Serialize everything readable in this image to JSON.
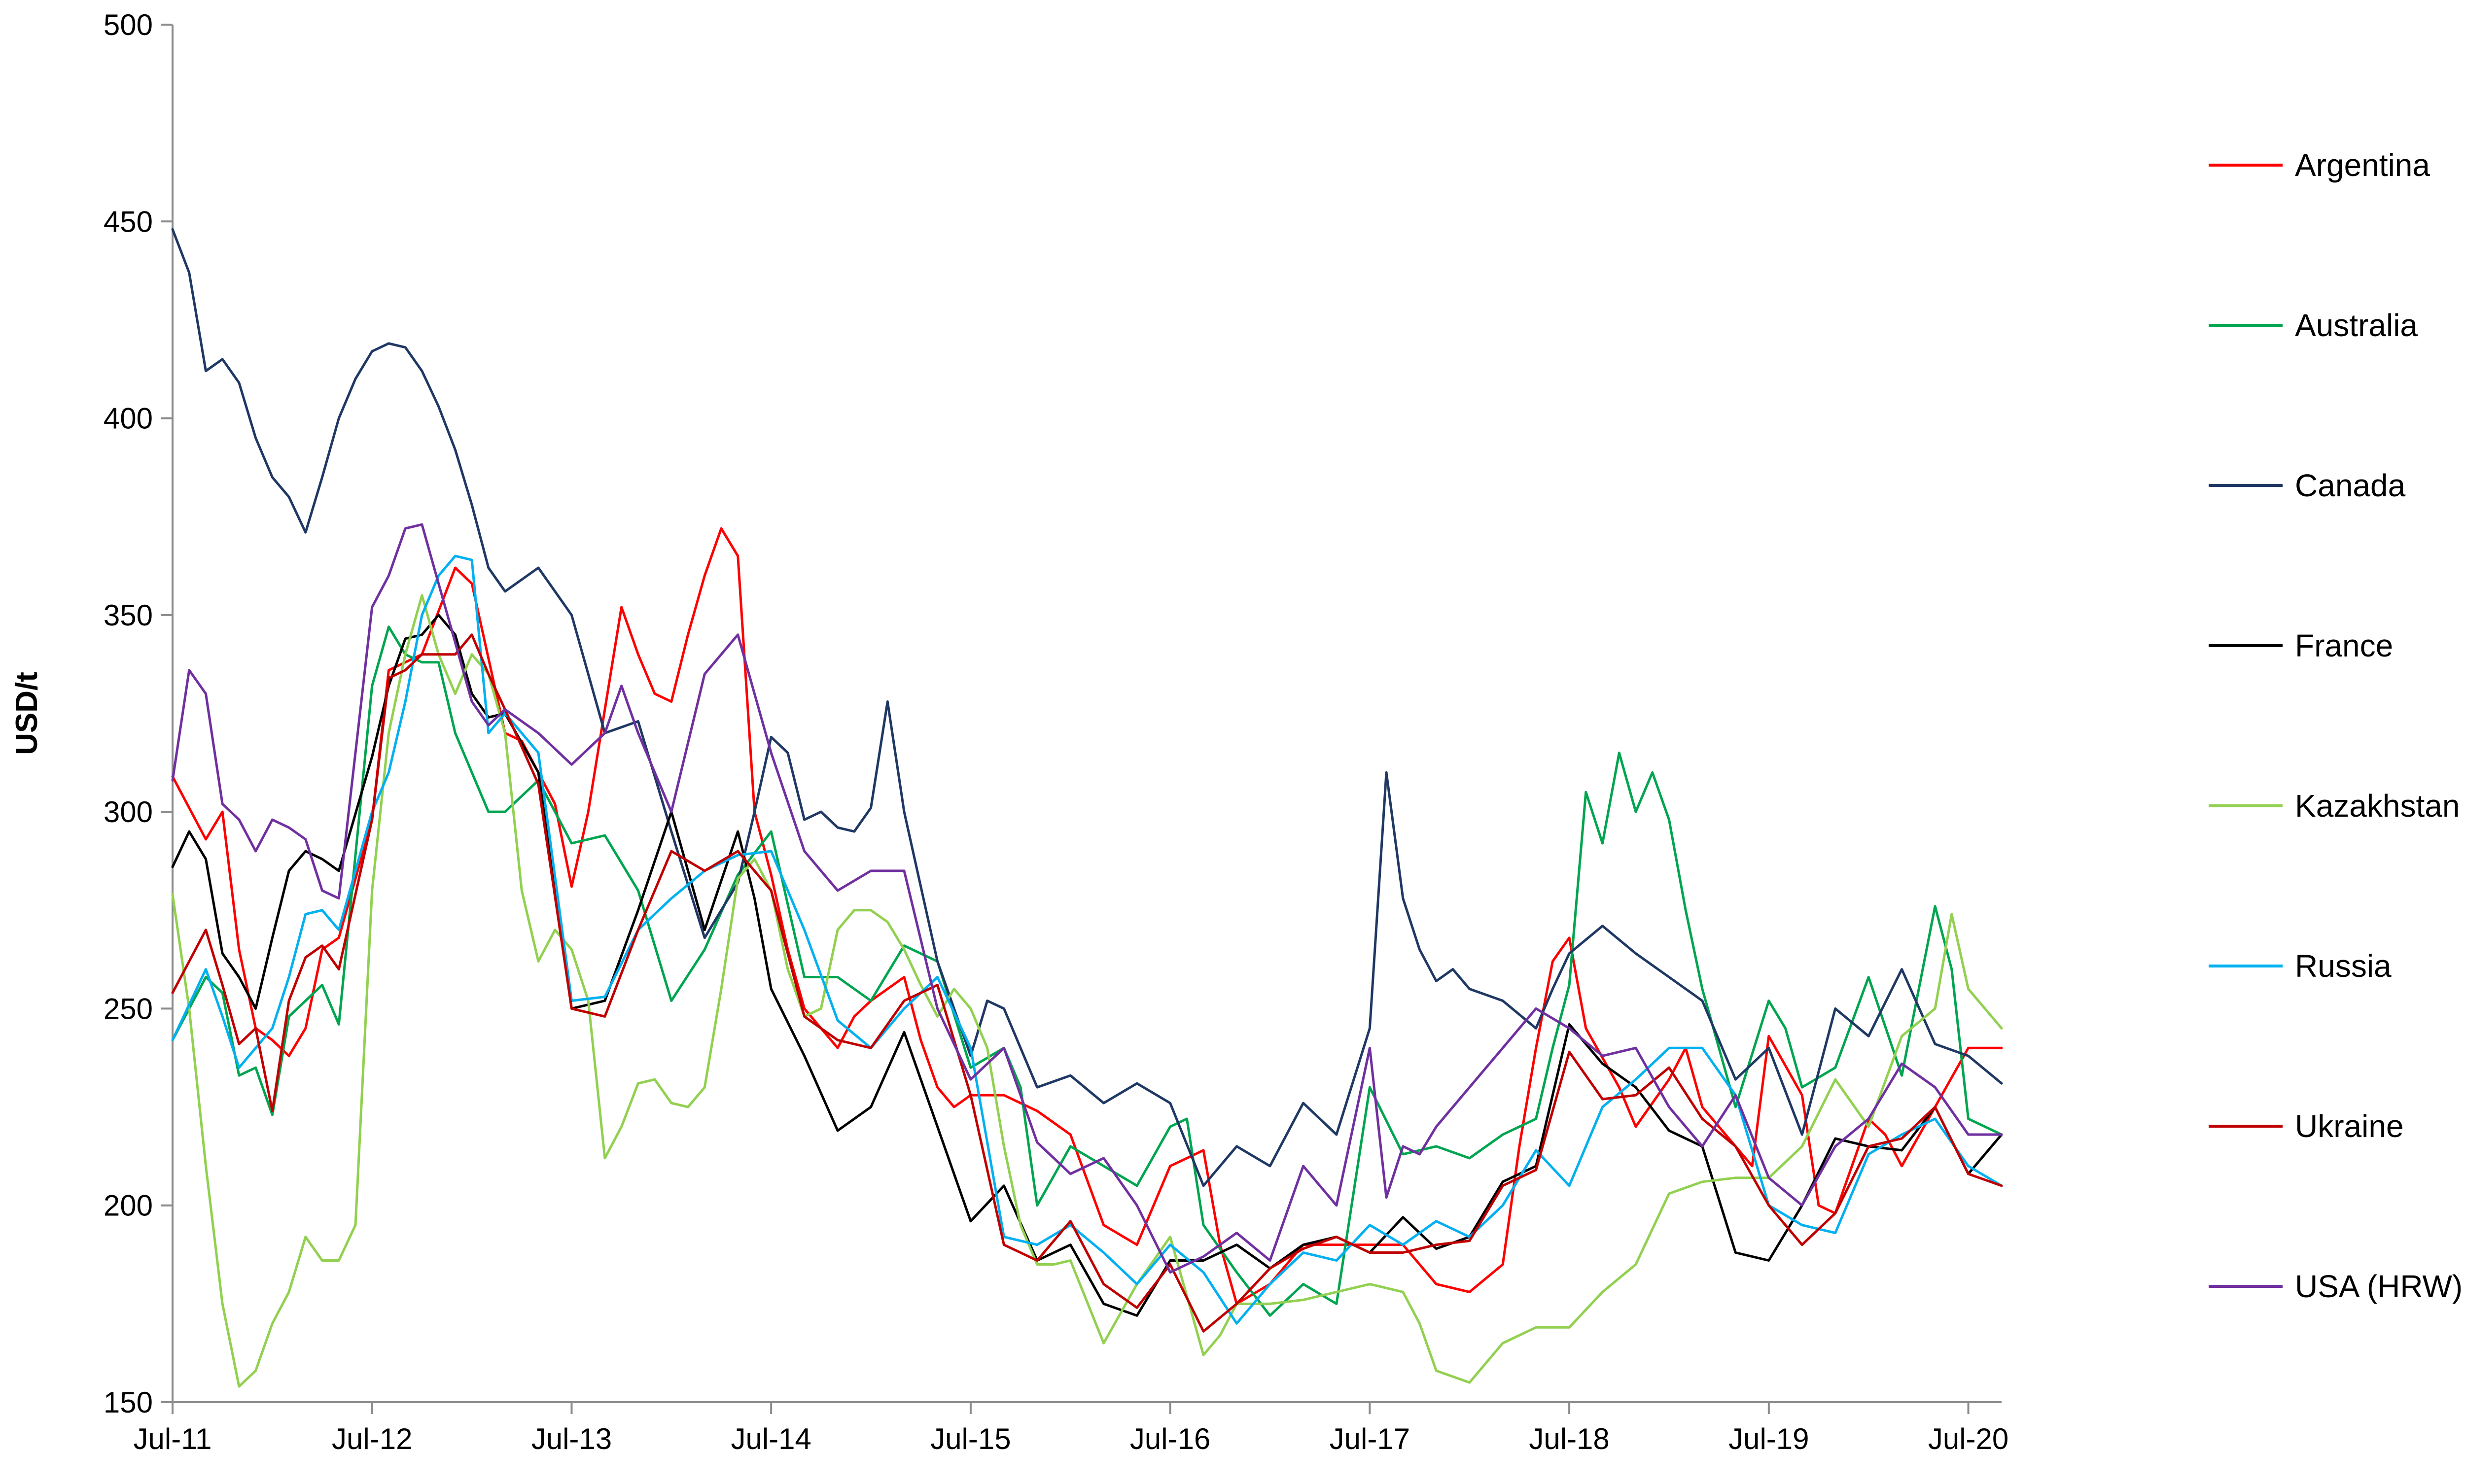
{
  "chart_data": {
    "type": "line",
    "title": "",
    "xlabel": "",
    "ylabel": "USD/t",
    "ylim": [
      150,
      500
    ],
    "y_ticks": [
      "150",
      "200",
      "250",
      "300",
      "350",
      "400",
      "450",
      "500"
    ],
    "x_tick_labels": [
      "Jul-11",
      "Jul-12",
      "Jul-13",
      "Jul-14",
      "Jul-15",
      "Jul-16",
      "Jul-17",
      "Jul-18",
      "Jul-19",
      "Jul-20"
    ],
    "x_tick_months": [
      0,
      12,
      24,
      36,
      48,
      60,
      72,
      84,
      96,
      108
    ],
    "x_range_months": [
      0,
      110
    ],
    "grid": false,
    "legend_position": "right",
    "series": [
      {
        "name": "Argentina",
        "color": "#ff0000",
        "x": [
          0,
          2,
          3,
          4,
          5,
          6,
          7,
          8,
          9,
          10,
          12,
          13,
          15,
          17,
          18,
          20,
          21,
          22,
          23,
          24,
          25,
          27,
          28,
          29,
          30,
          31,
          32,
          33,
          34,
          35,
          36,
          37,
          38,
          39,
          40,
          41,
          42,
          43,
          44,
          45,
          46,
          47,
          48,
          50,
          52,
          54,
          56,
          58,
          60,
          62,
          63,
          64,
          66,
          68,
          70,
          72,
          74,
          76,
          78,
          80,
          81,
          82,
          83,
          84,
          85,
          87,
          88,
          90,
          91,
          92,
          93,
          95,
          96,
          98,
          99,
          100,
          102,
          103,
          104,
          106,
          108,
          110
        ],
        "values": [
          309,
          293,
          300,
          265,
          245,
          242,
          238,
          245,
          265,
          268,
          298,
          336,
          340,
          362,
          358,
          320,
          318,
          310,
          302,
          281,
          300,
          352,
          340,
          330,
          328,
          345,
          360,
          372,
          365,
          300,
          284,
          265,
          250,
          245,
          240,
          248,
          252,
          255,
          258,
          242,
          230,
          225,
          228,
          228,
          224,
          218,
          195,
          190,
          210,
          214,
          190,
          175,
          180,
          190,
          190,
          190,
          190,
          180,
          178,
          185,
          215,
          240,
          262,
          268,
          245,
          230,
          220,
          232,
          240,
          225,
          220,
          210,
          243,
          228,
          200,
          198,
          222,
          218,
          210,
          225,
          240,
          240
        ]
      },
      {
        "name": "Australia",
        "color": "#00a550",
        "x": [
          0,
          2,
          3,
          4,
          5,
          6,
          7,
          8,
          9,
          10,
          12,
          13,
          14,
          15,
          16,
          17,
          18,
          19,
          20,
          22,
          24,
          26,
          28,
          30,
          32,
          34,
          36,
          38,
          40,
          42,
          44,
          46,
          48,
          50,
          51,
          52,
          54,
          56,
          58,
          60,
          61,
          62,
          64,
          66,
          68,
          70,
          72,
          74,
          76,
          78,
          80,
          82,
          83,
          84,
          85,
          86,
          87,
          88,
          89,
          90,
          91,
          92,
          94,
          96,
          97,
          98,
          100,
          102,
          104,
          106,
          107,
          108,
          110
        ],
        "values": [
          242,
          258,
          254,
          233,
          235,
          223,
          248,
          252,
          256,
          246,
          332,
          347,
          340,
          338,
          338,
          320,
          310,
          300,
          300,
          308,
          292,
          294,
          280,
          252,
          265,
          284,
          295,
          258,
          258,
          252,
          266,
          262,
          235,
          240,
          230,
          200,
          215,
          210,
          205,
          220,
          222,
          195,
          183,
          172,
          180,
          175,
          230,
          213,
          215,
          212,
          218,
          222,
          240,
          256,
          305,
          292,
          315,
          300,
          310,
          298,
          275,
          255,
          225,
          252,
          245,
          230,
          235,
          258,
          233,
          276,
          260,
          222,
          218
        ]
      },
      {
        "name": "Canada",
        "color": "#1f3864",
        "x": [
          0,
          1,
          2,
          3,
          4,
          5,
          6,
          7,
          8,
          9,
          10,
          11,
          12,
          13,
          14,
          15,
          16,
          17,
          18,
          19,
          20,
          22,
          24,
          26,
          28,
          30,
          32,
          34,
          35,
          36,
          37,
          38,
          39,
          40,
          41,
          42,
          43,
          44,
          46,
          48,
          49,
          50,
          52,
          54,
          56,
          58,
          60,
          62,
          64,
          66,
          68,
          70,
          72,
          73,
          74,
          75,
          76,
          77,
          78,
          80,
          82,
          83,
          84,
          86,
          88,
          90,
          92,
          94,
          96,
          98,
          100,
          102,
          104,
          106,
          108,
          110
        ],
        "values": [
          448,
          437,
          412,
          415,
          409,
          395,
          385,
          380,
          371,
          385,
          400,
          410,
          417,
          419,
          418,
          412,
          403,
          392,
          378,
          362,
          356,
          362,
          350,
          320,
          323,
          295,
          268,
          282,
          300,
          319,
          315,
          298,
          300,
          296,
          295,
          301,
          328,
          300,
          262,
          238,
          252,
          250,
          230,
          233,
          226,
          231,
          226,
          205,
          215,
          210,
          226,
          218,
          245,
          310,
          278,
          265,
          257,
          260,
          255,
          252,
          245,
          255,
          264,
          271,
          264,
          258,
          252,
          232,
          240,
          218,
          250,
          243,
          260,
          241,
          238,
          231
        ]
      },
      {
        "name": "France",
        "color": "#000000",
        "x": [
          0,
          1,
          2,
          3,
          4,
          5,
          6,
          7,
          8,
          9,
          10,
          12,
          13,
          14,
          15,
          16,
          17,
          18,
          19,
          20,
          22,
          24,
          26,
          28,
          30,
          32,
          34,
          35,
          36,
          38,
          40,
          42,
          44,
          46,
          48,
          50,
          52,
          54,
          56,
          58,
          60,
          62,
          64,
          66,
          68,
          70,
          72,
          74,
          76,
          78,
          80,
          82,
          84,
          86,
          88,
          90,
          92,
          94,
          96,
          98,
          100,
          102,
          104,
          106,
          108,
          110
        ],
        "values": [
          286,
          295,
          288,
          264,
          258,
          250,
          268,
          285,
          290,
          288,
          285,
          314,
          332,
          344,
          345,
          350,
          345,
          330,
          324,
          325,
          310,
          250,
          252,
          275,
          300,
          270,
          295,
          278,
          255,
          238,
          219,
          225,
          244,
          220,
          196,
          205,
          186,
          190,
          175,
          172,
          186,
          186,
          190,
          184,
          190,
          192,
          188,
          197,
          189,
          192,
          206,
          210,
          246,
          236,
          230,
          219,
          215,
          188,
          186,
          200,
          217,
          215,
          214,
          225,
          208,
          218
        ]
      },
      {
        "name": "Kazakhstan",
        "color": "#92d050",
        "x": [
          0,
          1,
          2,
          3,
          4,
          5,
          6,
          7,
          8,
          9,
          10,
          11,
          12,
          13,
          14,
          15,
          16,
          17,
          18,
          19,
          20,
          21,
          22,
          23,
          24,
          25,
          26,
          27,
          28,
          29,
          30,
          31,
          32,
          33,
          34,
          35,
          36,
          37,
          38,
          39,
          40,
          41,
          42,
          43,
          44,
          45,
          46,
          47,
          48,
          49,
          50,
          51,
          52,
          53,
          54,
          56,
          58,
          60,
          62,
          63,
          64,
          66,
          68,
          70,
          72,
          74,
          75,
          76,
          78,
          80,
          82,
          84,
          86,
          88,
          90,
          92,
          94,
          96,
          98,
          100,
          102,
          104,
          106,
          107,
          108,
          110
        ],
        "values": [
          279,
          250,
          210,
          175,
          154,
          158,
          170,
          178,
          192,
          186,
          186,
          195,
          280,
          320,
          340,
          355,
          340,
          330,
          340,
          335,
          320,
          280,
          262,
          270,
          265,
          252,
          212,
          220,
          231,
          232,
          226,
          225,
          230,
          255,
          283,
          288,
          280,
          260,
          248,
          250,
          270,
          275,
          275,
          272,
          265,
          256,
          248,
          255,
          250,
          240,
          215,
          195,
          185,
          185,
          186,
          165,
          180,
          192,
          162,
          167,
          175,
          175,
          176,
          178,
          180,
          178,
          170,
          158,
          155,
          165,
          169,
          169,
          178,
          185,
          203,
          206,
          207,
          207,
          215,
          232,
          220,
          243,
          250,
          274,
          255,
          245
        ]
      },
      {
        "name": "Russia",
        "color": "#00b0f0",
        "x": [
          0,
          2,
          3,
          4,
          5,
          6,
          7,
          8,
          9,
          10,
          12,
          13,
          14,
          15,
          16,
          17,
          18,
          19,
          20,
          22,
          24,
          26,
          28,
          30,
          32,
          34,
          36,
          38,
          40,
          42,
          44,
          46,
          48,
          50,
          52,
          54,
          56,
          58,
          60,
          62,
          64,
          66,
          68,
          70,
          72,
          74,
          76,
          78,
          80,
          82,
          84,
          86,
          88,
          90,
          92,
          94,
          96,
          98,
          100,
          102,
          104,
          106,
          108,
          110
        ],
        "values": [
          242,
          260,
          248,
          235,
          240,
          245,
          258,
          274,
          275,
          270,
          300,
          310,
          328,
          350,
          360,
          365,
          364,
          320,
          325,
          315,
          252,
          253,
          270,
          278,
          285,
          289,
          290,
          270,
          247,
          240,
          250,
          258,
          240,
          192,
          190,
          195,
          188,
          180,
          190,
          183,
          170,
          180,
          188,
          186,
          195,
          190,
          196,
          192,
          200,
          214,
          205,
          225,
          232,
          240,
          240,
          228,
          200,
          195,
          193,
          213,
          218,
          222,
          210,
          205
        ]
      },
      {
        "name": "Ukraine",
        "color": "#c00000",
        "x": [
          0,
          2,
          3,
          4,
          5,
          6,
          7,
          8,
          9,
          10,
          12,
          13,
          14,
          15,
          16,
          17,
          18,
          19,
          20,
          22,
          24,
          26,
          28,
          30,
          32,
          34,
          36,
          38,
          40,
          42,
          44,
          46,
          48,
          50,
          52,
          54,
          56,
          58,
          60,
          62,
          64,
          66,
          68,
          70,
          72,
          74,
          76,
          78,
          80,
          82,
          84,
          86,
          88,
          90,
          92,
          94,
          96,
          98,
          100,
          102,
          104,
          106,
          108,
          110
        ],
        "values": [
          254,
          270,
          256,
          241,
          245,
          224,
          252,
          263,
          266,
          260,
          298,
          334,
          336,
          340,
          340,
          340,
          345,
          335,
          326,
          307,
          250,
          248,
          270,
          290,
          285,
          290,
          280,
          248,
          242,
          240,
          252,
          256,
          228,
          190,
          186,
          196,
          180,
          174,
          185,
          168,
          175,
          184,
          189,
          192,
          188,
          188,
          190,
          191,
          205,
          209,
          239,
          227,
          228,
          235,
          222,
          215,
          200,
          190,
          198,
          215,
          217,
          225,
          208,
          205
        ]
      },
      {
        "name": "USA (HRW)",
        "color": "#7030a0",
        "x": [
          0,
          1,
          2,
          3,
          4,
          5,
          6,
          7,
          8,
          9,
          10,
          12,
          13,
          14,
          15,
          16,
          17,
          18,
          19,
          20,
          22,
          24,
          26,
          27,
          28,
          30,
          32,
          34,
          36,
          38,
          40,
          42,
          44,
          46,
          48,
          50,
          52,
          54,
          56,
          58,
          60,
          62,
          64,
          66,
          68,
          70,
          72,
          73,
          74,
          75,
          76,
          78,
          80,
          82,
          84,
          86,
          88,
          90,
          92,
          94,
          96,
          98,
          100,
          102,
          104,
          106,
          108,
          110
        ],
        "values": [
          308,
          336,
          330,
          302,
          298,
          290,
          298,
          296,
          293,
          280,
          278,
          352,
          360,
          372,
          373,
          358,
          343,
          328,
          322,
          326,
          320,
          312,
          320,
          332,
          320,
          300,
          335,
          345,
          315,
          290,
          280,
          285,
          285,
          250,
          232,
          240,
          216,
          208,
          212,
          200,
          183,
          187,
          193,
          186,
          210,
          200,
          240,
          202,
          215,
          213,
          220,
          230,
          240,
          250,
          245,
          238,
          240,
          225,
          215,
          228,
          207,
          200,
          215,
          222,
          236,
          230,
          218,
          218
        ]
      }
    ]
  }
}
